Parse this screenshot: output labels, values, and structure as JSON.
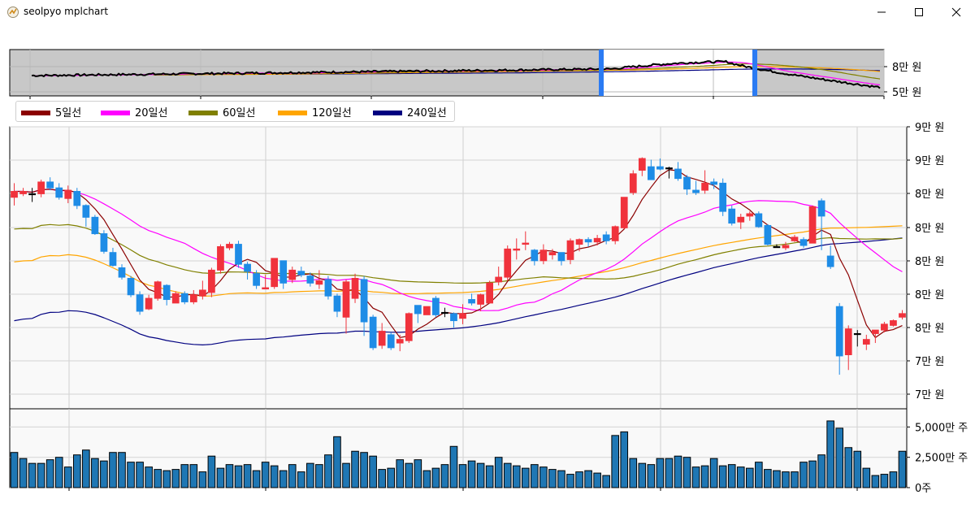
{
  "window": {
    "title": "seolpyo mplchart",
    "controls": {
      "minimize": "minimize",
      "maximize": "maximize",
      "close": "close"
    }
  },
  "chart_data": {
    "type": "candlestick",
    "legend": [
      {
        "label": "5일선",
        "color": "#8b0000"
      },
      {
        "label": "20일선",
        "color": "#ff00ff"
      },
      {
        "label": "60일선",
        "color": "#808000"
      },
      {
        "label": "120일선",
        "color": "#ffa500"
      },
      {
        "label": "240일선",
        "color": "#000080"
      }
    ],
    "overview": {
      "y_tick_labels": [
        "8만 원",
        "5만 원"
      ],
      "window_markers": [
        "selection-start",
        "selection-end"
      ],
      "marker_color": "#2b7bf3"
    },
    "price_axis": {
      "tick_labels": [
        "9만 원",
        "9만 원",
        "8만 원",
        "8만 원",
        "8만 원",
        "8만 원",
        "8만 원",
        "7만 원",
        "7만 원"
      ],
      "ylim": [
        68000,
        92000
      ]
    },
    "volume_axis": {
      "tick_labels": [
        "5,000만 주",
        "2,500만 주",
        "0주"
      ],
      "ylim": [
        0,
        65000000
      ]
    },
    "colors": {
      "up": "#f0323c",
      "down": "#1e8ce6",
      "volume": "#1f77b4",
      "panel_bg": "#f9f9f9",
      "overview_bg": "#c8c8c8"
    },
    "candles": [
      [
        86000,
        86500,
        87200,
        85300,
        29000000
      ],
      [
        86300,
        86500,
        86800,
        86100,
        24000000
      ],
      [
        86300,
        86300,
        86800,
        85600,
        20000000
      ],
      [
        86300,
        87300,
        87500,
        86000,
        20000000
      ],
      [
        87300,
        86800,
        87700,
        86600,
        23000000
      ],
      [
        86800,
        86000,
        87200,
        85800,
        25000000
      ],
      [
        85900,
        86600,
        87000,
        85500,
        17000000
      ],
      [
        86500,
        85300,
        86800,
        85000,
        27000000
      ],
      [
        85300,
        84300,
        85400,
        83500,
        31000000
      ],
      [
        84300,
        82900,
        84500,
        82800,
        24000000
      ],
      [
        82900,
        81400,
        83200,
        81200,
        22000000
      ],
      [
        81300,
        80200,
        81700,
        80100,
        29000000
      ],
      [
        80000,
        79200,
        80300,
        79000,
        29000000
      ],
      [
        79100,
        77700,
        79300,
        77500,
        21000000
      ],
      [
        77700,
        76300,
        78000,
        76000,
        21000000
      ],
      [
        76500,
        77400,
        77700,
        76400,
        17000000
      ],
      [
        77400,
        78800,
        78900,
        77200,
        15000000
      ],
      [
        78500,
        77300,
        78600,
        76800,
        14000000
      ],
      [
        77000,
        77800,
        78000,
        77000,
        15000000
      ],
      [
        77800,
        77100,
        78000,
        76900,
        19000000
      ],
      [
        77100,
        77700,
        78100,
        76900,
        19000000
      ],
      [
        77600,
        78100,
        78900,
        77300,
        13000000
      ],
      [
        77900,
        79800,
        80000,
        77500,
        26000000
      ],
      [
        79800,
        81800,
        82000,
        79500,
        16000000
      ],
      [
        81700,
        82000,
        82200,
        81500,
        19000000
      ],
      [
        82000,
        80300,
        82300,
        80000,
        18000000
      ],
      [
        80300,
        79700,
        80500,
        79000,
        19000000
      ],
      [
        79500,
        78500,
        79800,
        78200,
        14000000
      ],
      [
        78200,
        78300,
        79400,
        78200,
        21000000
      ],
      [
        78400,
        80800,
        80800,
        78200,
        18000000
      ],
      [
        80600,
        78700,
        80600,
        78200,
        14000000
      ],
      [
        79000,
        79800,
        80100,
        78700,
        19000000
      ],
      [
        79700,
        79400,
        80100,
        79200,
        13000000
      ],
      [
        79300,
        78700,
        79600,
        78400,
        20000000
      ],
      [
        78600,
        78900,
        79800,
        78200,
        19000000
      ],
      [
        79000,
        77600,
        79300,
        77300,
        27000000
      ],
      [
        77600,
        76300,
        77800,
        75800,
        42000000
      ],
      [
        75800,
        78800,
        79000,
        74400,
        20000000
      ],
      [
        77400,
        79100,
        79500,
        77000,
        30000000
      ],
      [
        79000,
        75400,
        79300,
        74200,
        29000000
      ],
      [
        75800,
        73200,
        76000,
        73000,
        26000000
      ],
      [
        73400,
        74600,
        75300,
        73100,
        15000000
      ],
      [
        74300,
        73200,
        74500,
        73000,
        16000000
      ],
      [
        73600,
        73900,
        74300,
        72900,
        23000000
      ],
      [
        73800,
        76100,
        76200,
        73600,
        20000000
      ],
      [
        76800,
        76100,
        76800,
        75300,
        23000000
      ],
      [
        76000,
        76700,
        76700,
        76200,
        14000000
      ],
      [
        77400,
        76000,
        77600,
        75800,
        16000000
      ],
      [
        76200,
        76200,
        76600,
        75800,
        19000000
      ],
      [
        76100,
        75500,
        76200,
        74900,
        34000000
      ],
      [
        75700,
        76100,
        76900,
        75200,
        19000000
      ],
      [
        77300,
        77000,
        77800,
        76800,
        22000000
      ],
      [
        76900,
        77700,
        77800,
        76300,
        20000000
      ],
      [
        77000,
        78700,
        78900,
        77100,
        18000000
      ],
      [
        78800,
        79200,
        80100,
        78500,
        25000000
      ],
      [
        79200,
        81600,
        81900,
        78900,
        20000000
      ],
      [
        81500,
        81600,
        82500,
        80700,
        18000000
      ],
      [
        82000,
        82100,
        83100,
        81500,
        16000000
      ],
      [
        81500,
        80600,
        81600,
        80200,
        19000000
      ],
      [
        80600,
        81500,
        82000,
        80300,
        17000000
      ],
      [
        81100,
        81300,
        81600,
        80700,
        15000000
      ],
      [
        81300,
        80600,
        81300,
        80200,
        14000000
      ],
      [
        80700,
        82300,
        82500,
        80300,
        11000000
      ],
      [
        82000,
        82400,
        82500,
        81400,
        13000000
      ],
      [
        82400,
        82200,
        82600,
        81800,
        14000000
      ],
      [
        82200,
        82500,
        82800,
        81900,
        12000000
      ],
      [
        82800,
        82300,
        83100,
        82000,
        10000000
      ],
      [
        82300,
        83500,
        83600,
        82000,
        43000000
      ],
      [
        83400,
        86000,
        86000,
        83300,
        46000000
      ],
      [
        86400,
        88000,
        88300,
        86200,
        24000000
      ],
      [
        88300,
        89300,
        89400,
        87800,
        20000000
      ],
      [
        88600,
        87500,
        89200,
        87500,
        19000000
      ],
      [
        88600,
        88400,
        89300,
        88300,
        24000000
      ],
      [
        88500,
        88500,
        88600,
        87600,
        24000000
      ],
      [
        88400,
        87600,
        89000,
        87400,
        26000000
      ],
      [
        87700,
        86700,
        87900,
        86200,
        25000000
      ],
      [
        86600,
        86400,
        87400,
        86200,
        17000000
      ],
      [
        86600,
        87200,
        88300,
        86300,
        18000000
      ],
      [
        87300,
        87100,
        87600,
        86700,
        24000000
      ],
      [
        87200,
        84800,
        87600,
        84400,
        18000000
      ],
      [
        85000,
        83800,
        85300,
        83600,
        19000000
      ],
      [
        83900,
        84300,
        84600,
        83300,
        17000000
      ],
      [
        84400,
        84600,
        84800,
        84000,
        16000000
      ],
      [
        84600,
        83500,
        84800,
        83400,
        21000000
      ],
      [
        83600,
        82000,
        83700,
        81900,
        15000000
      ],
      [
        81800,
        81800,
        82000,
        81700,
        14000000
      ],
      [
        81700,
        81900,
        82200,
        81500,
        13000000
      ],
      [
        82300,
        82600,
        82800,
        82200,
        13000000
      ],
      [
        82400,
        81900,
        82600,
        81700,
        21000000
      ],
      [
        82100,
        85200,
        85300,
        82100,
        22000000
      ],
      [
        85700,
        84400,
        85900,
        81500,
        27000000
      ],
      [
        81000,
        80100,
        81900,
        79900,
        55000000
      ],
      [
        76700,
        72500,
        77000,
        70900,
        49000000
      ],
      [
        72600,
        74800,
        75100,
        71300,
        33000000
      ],
      [
        74400,
        74400,
        74700,
        73300,
        30000000
      ],
      [
        73500,
        73900,
        74300,
        73000,
        16000000
      ],
      [
        74400,
        74700,
        74700,
        73600,
        10000000
      ],
      [
        74700,
        75200,
        75400,
        74500,
        11000000
      ],
      [
        75100,
        75500,
        75600,
        75000,
        13000000
      ],
      [
        75800,
        76100,
        76400,
        75600,
        30000000
      ]
    ]
  }
}
